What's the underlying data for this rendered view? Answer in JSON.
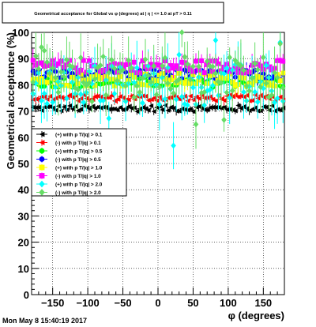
{
  "chart_data": {
    "type": "scatter",
    "title": "Geometrical acceptance for Global vs φ (degrees) at | η | <= 1.0 at pT > 0.11",
    "xlabel": "φ (degrees)",
    "ylabel": "Geometrical acceptance (%)",
    "xlim": [
      -180,
      180
    ],
    "ylim": [
      0,
      100
    ],
    "xticks": [
      -150,
      -100,
      -50,
      0,
      50,
      100,
      150
    ],
    "xtick_labels": [
      "−150",
      "−100",
      "−50",
      "0",
      "50",
      "100",
      "150"
    ],
    "yticks": [
      0,
      10,
      20,
      30,
      40,
      50,
      60,
      70,
      80,
      90,
      100
    ],
    "grid": true,
    "legend_position": "left",
    "footer": "Mon May  8 15:40:19 2017",
    "n_bins": 90,
    "series": [
      {
        "name": "(+) with p T/|q| > 0.1",
        "color": "#000000",
        "marker": "triangle",
        "mean": 71,
        "spread": 1.2,
        "err": 1.2
      },
      {
        "name": "(-) with p T/|q| > 0.1",
        "color": "#ff0000",
        "marker": "triangle",
        "mean": 75,
        "spread": 1.2,
        "err": 1.3
      },
      {
        "name": "(+) with p T/|q| > 0.5",
        "color": "#00ff00",
        "marker": "circle",
        "mean": 81,
        "spread": 2.0,
        "err": 2.5
      },
      {
        "name": "(-) with p T/|q| > 0.5",
        "color": "#0000ff",
        "marker": "circle",
        "mean": 84,
        "spread": 2.0,
        "err": 2.5
      },
      {
        "name": "(+) with p T/|q| > 1.0",
        "color": "#ffff00",
        "marker": "square",
        "mean": 82,
        "spread": 2.5,
        "err": 3.0
      },
      {
        "name": "(-) with p T/|q| > 1.0",
        "color": "#ff00ff",
        "marker": "square",
        "mean": 87,
        "spread": 2.5,
        "err": 3.0
      },
      {
        "name": "(+) with p T/|q| > 2.0",
        "color": "#00ffff",
        "marker": "diamond",
        "mean": 80,
        "spread": 8.0,
        "err": 7.0
      },
      {
        "name": "(-) with p T/|q| > 2.0",
        "color": "#66dd66",
        "marker": "diamond",
        "mean": 83,
        "spread": 8.0,
        "err": 7.0
      }
    ]
  }
}
